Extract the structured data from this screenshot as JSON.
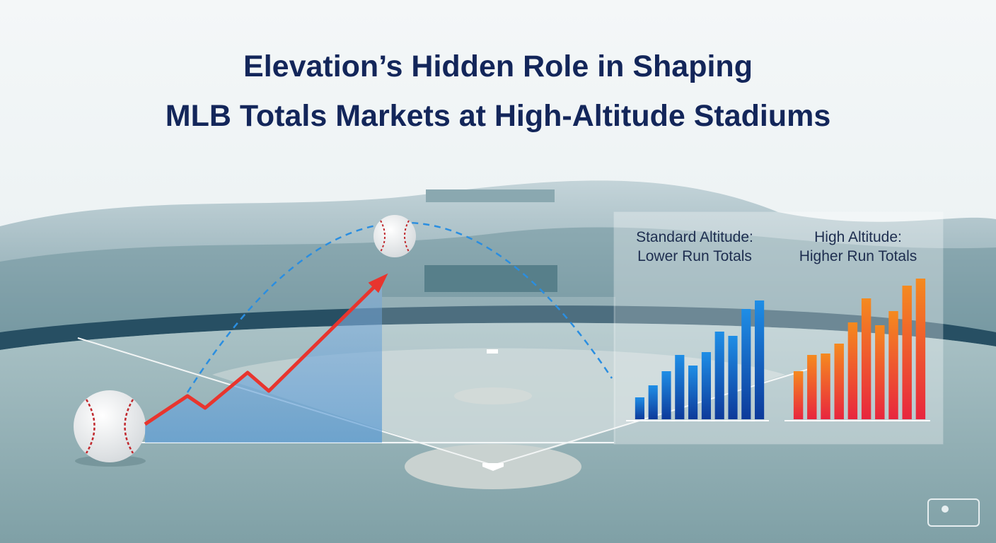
{
  "header": {
    "title_lines": [
      "Elevation’s Hidden Role in Shaping",
      "MLB Totals Markets at High-Altitude Stadiums"
    ]
  },
  "chart_data": [
    {
      "type": "line",
      "x": [
        0,
        60,
        85,
        145,
        175,
        335
      ],
      "values": [
        0,
        40,
        23,
        73,
        47,
        205
      ],
      "xlim": [
        0,
        335
      ],
      "ylim": [
        0,
        205
      ],
      "color": "#e8352e",
      "color_end": "#f08a24"
    },
    {
      "type": "bar",
      "title": "Standard Altitude:",
      "subtitle": "Lower Run Totals",
      "categories": [
        null,
        null,
        null,
        null,
        null,
        null,
        null,
        null,
        null,
        null
      ],
      "values": [
        31,
        48,
        68,
        91,
        76,
        95,
        124,
        118,
        156,
        168
      ],
      "ylim": [
        0,
        200
      ],
      "color": "#1f8ee6",
      "color_end": "#0d3a9a"
    },
    {
      "type": "bar",
      "title": "High Altitude:",
      "subtitle": "Higher Run Totals",
      "categories": [
        null,
        null,
        null,
        null,
        null,
        null,
        null,
        null,
        null,
        null
      ],
      "values": [
        68,
        91,
        93,
        107,
        137,
        171,
        133,
        153,
        189,
        199
      ],
      "ylim": [
        0,
        200
      ],
      "color": "#f58a1f",
      "color_end": "#e8263e"
    }
  ]
}
